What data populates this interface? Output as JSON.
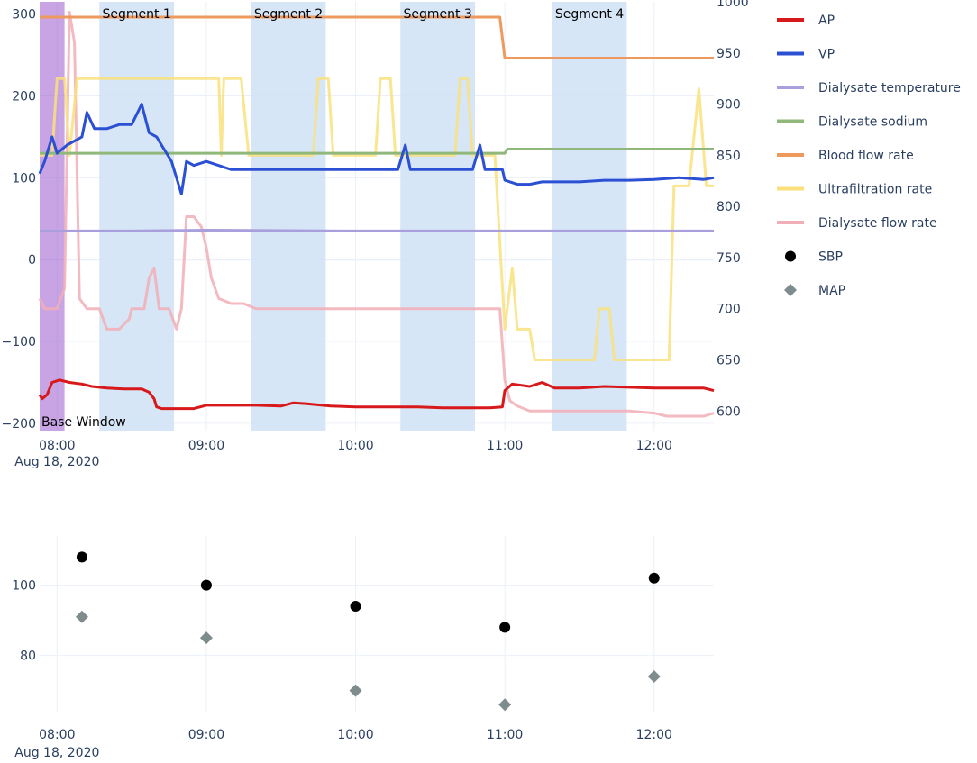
{
  "chart_data": [
    {
      "type": "line",
      "base_window": {
        "label": "Base Window",
        "start": "07:53",
        "end": "08:03",
        "color": "#9b59d0"
      },
      "segments": [
        {
          "label": "Segment 1",
          "start": "08:17",
          "end": "08:47"
        },
        {
          "label": "Segment 2",
          "start": "09:18",
          "end": "09:48"
        },
        {
          "label": "Segment 3",
          "start": "10:18",
          "end": "10:48"
        },
        {
          "label": "Segment 4",
          "start": "11:19",
          "end": "11:49"
        }
      ],
      "x_range": [
        "07:53",
        "12:24"
      ],
      "x_ticks": [
        "08:00",
        "09:00",
        "10:00",
        "11:00",
        "12:00"
      ],
      "x_date_label": "Aug 18, 2020",
      "y_left": {
        "range": [
          -210,
          315
        ],
        "ticks": [
          300,
          200,
          100,
          0,
          -100,
          -200
        ],
        "tick_labels": [
          "300",
          "200",
          "100",
          "0",
          "−100",
          "−200"
        ]
      },
      "y_right": {
        "range": [
          580,
          1000
        ],
        "ticks": [
          1000,
          950,
          900,
          850,
          800,
          750,
          700,
          650,
          600
        ],
        "tick_labels": [
          "1000",
          "950",
          "900",
          "850",
          "800",
          "750",
          "700",
          "650",
          "600"
        ]
      },
      "grid": true,
      "series": [
        {
          "name": "AP",
          "axis": "left",
          "color": "#d7191c",
          "points": [
            [
              "07:53",
              -165
            ],
            [
              "07:54",
              -170
            ],
            [
              "07:56",
              -165
            ],
            [
              "07:58",
              -150
            ],
            [
              "08:01",
              -147
            ],
            [
              "08:05",
              -150
            ],
            [
              "08:10",
              -152
            ],
            [
              "08:14",
              -155
            ],
            [
              "08:20",
              -157
            ],
            [
              "08:27",
              -158
            ],
            [
              "08:34",
              -158
            ],
            [
              "08:37",
              -162
            ],
            [
              "08:39",
              -170
            ],
            [
              "08:40",
              -180
            ],
            [
              "08:42",
              -182
            ],
            [
              "08:48",
              -182
            ],
            [
              "08:55",
              -182
            ],
            [
              "09:00",
              -178
            ],
            [
              "09:05",
              -178
            ],
            [
              "09:15",
              -178
            ],
            [
              "09:20",
              -178
            ],
            [
              "09:30",
              -179
            ],
            [
              "09:35",
              -175
            ],
            [
              "09:40",
              -176
            ],
            [
              "09:50",
              -179
            ],
            [
              "10:00",
              -180
            ],
            [
              "10:10",
              -180
            ],
            [
              "10:18",
              -180
            ],
            [
              "10:25",
              -180
            ],
            [
              "10:35",
              -181
            ],
            [
              "10:45",
              -181
            ],
            [
              "10:54",
              -181
            ],
            [
              "10:59",
              -180
            ],
            [
              "11:00",
              -160
            ],
            [
              "11:03",
              -152
            ],
            [
              "11:10",
              -155
            ],
            [
              "11:15",
              -150
            ],
            [
              "11:20",
              -157
            ],
            [
              "11:30",
              -157
            ],
            [
              "11:40",
              -155
            ],
            [
              "11:50",
              -156
            ],
            [
              "12:00",
              -157
            ],
            [
              "12:10",
              -157
            ],
            [
              "12:20",
              -157
            ],
            [
              "12:24",
              -160
            ]
          ]
        },
        {
          "name": "VP",
          "axis": "left",
          "color": "#2b50d4",
          "points": [
            [
              "07:53",
              105
            ],
            [
              "07:55",
              120
            ],
            [
              "07:58",
              150
            ],
            [
              "08:00",
              130
            ],
            [
              "08:04",
              140
            ],
            [
              "08:07",
              145
            ],
            [
              "08:10",
              150
            ],
            [
              "08:12",
              180
            ],
            [
              "08:15",
              160
            ],
            [
              "08:20",
              160
            ],
            [
              "08:25",
              165
            ],
            [
              "08:30",
              165
            ],
            [
              "08:34",
              190
            ],
            [
              "08:37",
              155
            ],
            [
              "08:40",
              150
            ],
            [
              "08:42",
              140
            ],
            [
              "08:44",
              130
            ],
            [
              "08:46",
              120
            ],
            [
              "08:48",
              100
            ],
            [
              "08:50",
              80
            ],
            [
              "08:52",
              120
            ],
            [
              "08:55",
              115
            ],
            [
              "09:00",
              120
            ],
            [
              "09:05",
              115
            ],
            [
              "09:10",
              110
            ],
            [
              "09:20",
              110
            ],
            [
              "09:30",
              110
            ],
            [
              "09:40",
              110
            ],
            [
              "09:50",
              110
            ],
            [
              "10:00",
              110
            ],
            [
              "10:10",
              110
            ],
            [
              "10:17",
              110
            ],
            [
              "10:20",
              140
            ],
            [
              "10:22",
              110
            ],
            [
              "10:30",
              110
            ],
            [
              "10:40",
              110
            ],
            [
              "10:47",
              110
            ],
            [
              "10:50",
              140
            ],
            [
              "10:52",
              110
            ],
            [
              "10:59",
              110
            ],
            [
              "11:00",
              97
            ],
            [
              "11:05",
              92
            ],
            [
              "11:10",
              92
            ],
            [
              "11:15",
              95
            ],
            [
              "11:20",
              95
            ],
            [
              "11:30",
              95
            ],
            [
              "11:40",
              97
            ],
            [
              "11:50",
              97
            ],
            [
              "12:00",
              98
            ],
            [
              "12:10",
              100
            ],
            [
              "12:20",
              98
            ],
            [
              "12:24",
              100
            ]
          ]
        },
        {
          "name": "Dialysate temperature",
          "axis": "left",
          "color": "#a99fdc",
          "points": [
            [
              "07:53",
              35
            ],
            [
              "08:30",
              35
            ],
            [
              "09:00",
              36
            ],
            [
              "10:00",
              35
            ],
            [
              "11:00",
              35
            ],
            [
              "12:00",
              35
            ],
            [
              "12:24",
              35
            ]
          ]
        },
        {
          "name": "Dialysate sodium",
          "axis": "right",
          "color": "#8fb87a",
          "points": [
            [
              "07:53",
              852
            ],
            [
              "11:00",
              852
            ],
            [
              "11:01",
              856
            ],
            [
              "12:24",
              856
            ]
          ]
        },
        {
          "name": "Blood flow rate",
          "axis": "right",
          "color": "#ee9a5e",
          "points": [
            [
              "07:53",
              985
            ],
            [
              "10:58",
              985
            ],
            [
              "11:00",
              945
            ],
            [
              "12:24",
              945
            ]
          ]
        },
        {
          "name": "Ultrafiltration rate",
          "axis": "right",
          "color": "#f9e07d",
          "points": [
            [
              "07:53",
              850
            ],
            [
              "07:58",
              850
            ],
            [
              "08:00",
              925
            ],
            [
              "08:03",
              925
            ],
            [
              "08:05",
              850
            ],
            [
              "08:08",
              925
            ],
            [
              "08:55",
              925
            ],
            [
              "09:00",
              925
            ],
            [
              "09:05",
              925
            ],
            [
              "09:06",
              850
            ],
            [
              "09:07",
              925
            ],
            [
              "09:14",
              925
            ],
            [
              "09:17",
              850
            ],
            [
              "09:35",
              850
            ],
            [
              "09:43",
              850
            ],
            [
              "09:45",
              925
            ],
            [
              "09:49",
              925
            ],
            [
              "09:51",
              850
            ],
            [
              "10:08",
              850
            ],
            [
              "10:10",
              925
            ],
            [
              "10:14",
              925
            ],
            [
              "10:16",
              850
            ],
            [
              "10:40",
              850
            ],
            [
              "10:42",
              925
            ],
            [
              "10:45",
              925
            ],
            [
              "10:47",
              850
            ],
            [
              "10:56",
              850
            ],
            [
              "11:00",
              680
            ],
            [
              "11:03",
              740
            ],
            [
              "11:05",
              680
            ],
            [
              "11:10",
              680
            ],
            [
              "11:12",
              650
            ],
            [
              "11:36",
              650
            ],
            [
              "11:38",
              700
            ],
            [
              "11:42",
              700
            ],
            [
              "11:44",
              650
            ],
            [
              "12:06",
              650
            ],
            [
              "12:08",
              820
            ],
            [
              "12:12",
              820
            ],
            [
              "12:14",
              820
            ],
            [
              "12:18",
              915
            ],
            [
              "12:21",
              820
            ],
            [
              "12:24",
              820
            ]
          ]
        },
        {
          "name": "Dialysate flow rate",
          "axis": "right",
          "color": "#f2aeb6",
          "points": [
            [
              "07:53",
              710
            ],
            [
              "07:55",
              700
            ],
            [
              "07:58",
              700
            ],
            [
              "08:00",
              700
            ],
            [
              "08:03",
              720
            ],
            [
              "08:05",
              990
            ],
            [
              "08:07",
              960
            ],
            [
              "08:09",
              710
            ],
            [
              "08:12",
              700
            ],
            [
              "08:15",
              700
            ],
            [
              "08:17",
              700
            ],
            [
              "08:20",
              680
            ],
            [
              "08:25",
              680
            ],
            [
              "08:29",
              690
            ],
            [
              "08:30",
              700
            ],
            [
              "08:35",
              700
            ],
            [
              "08:37",
              730
            ],
            [
              "08:39",
              740
            ],
            [
              "08:41",
              700
            ],
            [
              "08:45",
              700
            ],
            [
              "08:48",
              680
            ],
            [
              "08:50",
              700
            ],
            [
              "08:52",
              790
            ],
            [
              "08:55",
              790
            ],
            [
              "08:58",
              780
            ],
            [
              "09:00",
              760
            ],
            [
              "09:02",
              730
            ],
            [
              "09:05",
              710
            ],
            [
              "09:10",
              705
            ],
            [
              "09:15",
              705
            ],
            [
              "09:20",
              700
            ],
            [
              "09:30",
              700
            ],
            [
              "09:40",
              700
            ],
            [
              "09:50",
              700
            ],
            [
              "09:56",
              700
            ],
            [
              "10:00",
              700
            ],
            [
              "10:10",
              700
            ],
            [
              "10:17",
              700
            ],
            [
              "10:20",
              700
            ],
            [
              "10:30",
              700
            ],
            [
              "10:40",
              700
            ],
            [
              "10:50",
              700
            ],
            [
              "10:58",
              700
            ],
            [
              "11:00",
              630
            ],
            [
              "11:02",
              610
            ],
            [
              "11:05",
              605
            ],
            [
              "11:10",
              600
            ],
            [
              "11:20",
              600
            ],
            [
              "11:30",
              600
            ],
            [
              "11:40",
              600
            ],
            [
              "11:50",
              600
            ],
            [
              "12:00",
              598
            ],
            [
              "12:05",
              595
            ],
            [
              "12:10",
              595
            ],
            [
              "12:20",
              595
            ],
            [
              "12:24",
              598
            ]
          ]
        }
      ]
    },
    {
      "type": "scatter",
      "x_range": [
        "07:53",
        "12:24"
      ],
      "x_ticks": [
        "08:00",
        "09:00",
        "10:00",
        "11:00",
        "12:00"
      ],
      "x_date_label": "Aug 18, 2020",
      "y_range": [
        64,
        114
      ],
      "y_ticks": [
        100,
        80
      ],
      "grid": true,
      "series": [
        {
          "name": "SBP",
          "marker": "circle",
          "color": "#000000",
          "points": [
            [
              "08:10",
              108
            ],
            [
              "09:00",
              100
            ],
            [
              "10:00",
              94
            ],
            [
              "11:00",
              88
            ],
            [
              "12:00",
              102
            ]
          ]
        },
        {
          "name": "MAP",
          "marker": "diamond",
          "color": "#7f8c8d",
          "points": [
            [
              "08:10",
              91
            ],
            [
              "09:00",
              85
            ],
            [
              "10:00",
              70
            ],
            [
              "11:00",
              66
            ],
            [
              "12:00",
              74
            ]
          ]
        }
      ]
    }
  ]
}
